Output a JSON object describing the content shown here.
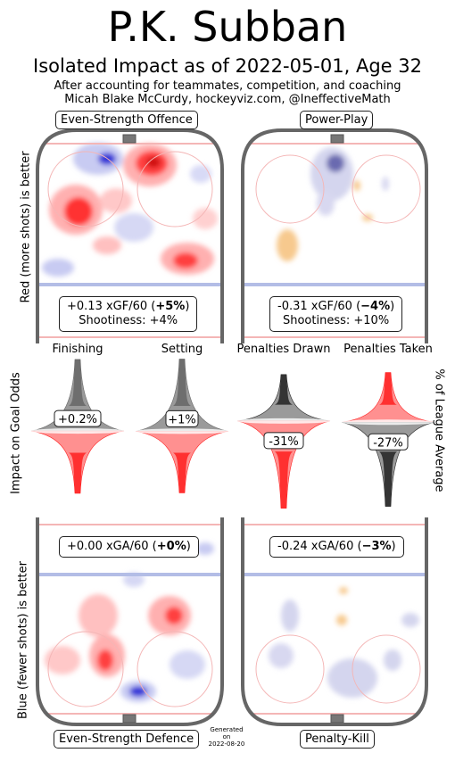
{
  "header": {
    "title": "P.K. Subban",
    "subtitle": "Isolated Impact as of 2022-05-01, Age 32",
    "note_line1": "After accounting for teammates, competition, and coaching",
    "note_line2": "Micah Blake McCurdy, hockeyviz.com, @IneffectiveMath"
  },
  "panels": {
    "ev_offence": {
      "label": "Even-Strength Offence",
      "stat_prefix": "+0.13 xGF/60 (",
      "stat_pct": "+5%",
      "stat_suffix": ")",
      "shootiness": "Shootiness: +4%"
    },
    "power_play": {
      "label": "Power-Play",
      "stat_prefix": "-0.31 xGF/60 (",
      "stat_pct": "−4%",
      "stat_suffix": ")",
      "shootiness": "Shootiness: +10%"
    },
    "ev_defence": {
      "label": "Even-Strength Defence",
      "stat_prefix": "+0.00 xGA/60 (",
      "stat_pct": "+0%",
      "stat_suffix": ")"
    },
    "penalty_kill": {
      "label": "Penalty-Kill",
      "stat_prefix": "-0.24 xGA/60 (",
      "stat_pct": "−3%",
      "stat_suffix": ")"
    }
  },
  "axis_labels": {
    "left_top": "Red (more shots) is better",
    "left_mid": "Impact on Goal Odds",
    "left_bottom": "Blue (fewer shots) is better",
    "right_mid": "% of League Average"
  },
  "footer": {
    "generated_line1": "Generated",
    "generated_line2": "on",
    "generated_date": "2022-08-20"
  },
  "colors": {
    "rink_boards": "#666666",
    "red_line": "#f4b6b6",
    "blue_line": "#b3bde6",
    "more_shots": "#ff2020",
    "fewer_shots": "#3030d0",
    "pp_orange": "#f7c98e"
  },
  "chart_data": {
    "type": "violin",
    "categories": [
      "Finishing",
      "Setting",
      "Penalties Drawn",
      "Penalties Taken"
    ],
    "values": [
      0.2,
      1,
      -31,
      -27
    ],
    "labels": [
      "+0.2%",
      "+1%",
      "-31%",
      "-27%"
    ],
    "units": "%"
  }
}
